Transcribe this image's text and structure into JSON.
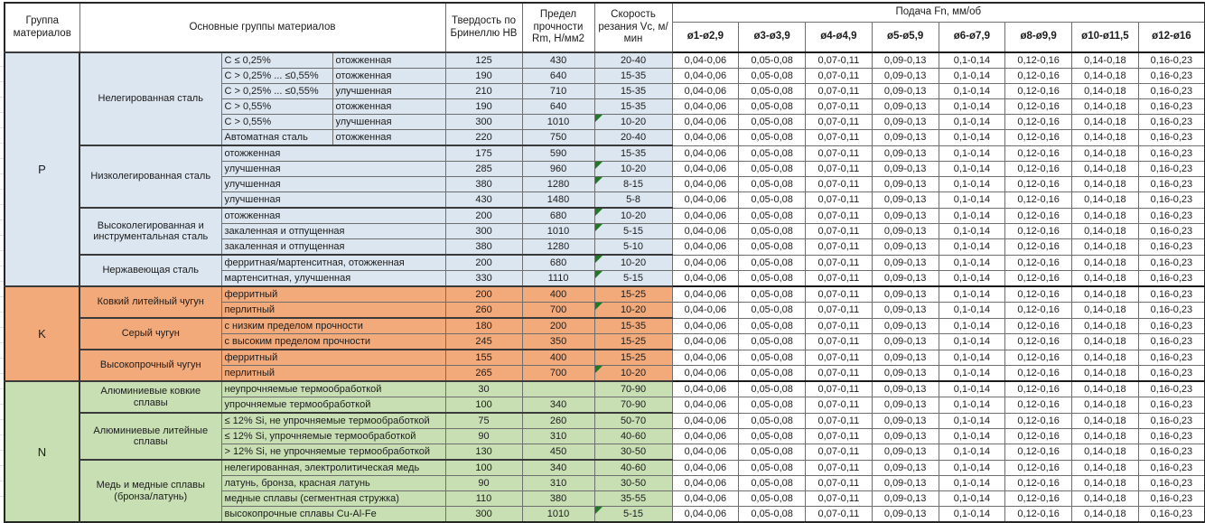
{
  "header": {
    "col_group": "Группа материалов",
    "col_materials": "Основные группы материалов",
    "col_hb": "Твердость по Бринеллю НВ",
    "col_rm": "Предел прочности Rm, Н/мм2",
    "col_vc": "Скорость резания Vc, м/мин",
    "col_feed": "Подача Fn, мм/об",
    "feed_cols": [
      "ø1-ø2,9",
      "ø3-ø3,9",
      "ø4-ø4,9",
      "ø5-ø5,9",
      "ø6-ø7,9",
      "ø8-ø9,9",
      "ø10-ø11,5",
      "ø12-ø16"
    ]
  },
  "colors": {
    "group_p_bg": "#dce6f0",
    "group_k_bg": "#f3aa7b",
    "group_n_bg": "#c8dfb4",
    "note_flag": "#1f7a24",
    "grid_border": "#6e6e6e"
  },
  "feed_values": [
    "0,04-0,06",
    "0,05-0,08",
    "0,07-0,11",
    "0,09-0,13",
    "0,1-0,14",
    "0,12-0,16",
    "0,14-0,18",
    "0,16-0,23"
  ],
  "groups": [
    {
      "letter": "P",
      "families": [
        {
          "name": "Нелегированная сталь",
          "rows": [
            {
              "sub1": "C ≤ 0,25%",
              "sub2": "отожженная",
              "hb": "125",
              "rm": "430",
              "vc": "20-40",
              "flag": false
            },
            {
              "sub1": "C > 0,25% ... ≤0,55%",
              "sub2": "отожженная",
              "hb": "190",
              "rm": "640",
              "vc": "15-35",
              "flag": false
            },
            {
              "sub1": "C > 0,25% ... ≤0,55%",
              "sub2": "улучшенная",
              "hb": "210",
              "rm": "710",
              "vc": "15-35",
              "flag": false
            },
            {
              "sub1": "C > 0,55%",
              "sub2": "отожженная",
              "hb": "190",
              "rm": "640",
              "vc": "15-35",
              "flag": false
            },
            {
              "sub1": "C > 0,55%",
              "sub2": "улучшенная",
              "hb": "300",
              "rm": "1010",
              "vc": "10-20",
              "flag": true
            },
            {
              "sub1": "Автоматная сталь",
              "sub2": "отожженная",
              "hb": "220",
              "rm": "750",
              "vc": "20-40",
              "flag": false
            }
          ]
        },
        {
          "name": "Низколегированная сталь",
          "rows": [
            {
              "sub1": "отожженная",
              "hb": "175",
              "rm": "590",
              "vc": "15-35",
              "flag": false
            },
            {
              "sub1": "улучшенная",
              "hb": "285",
              "rm": "960",
              "vc": "10-20",
              "flag": true
            },
            {
              "sub1": "улучшенная",
              "hb": "380",
              "rm": "1280",
              "vc": "8-15",
              "flag": true
            },
            {
              "sub1": "улучшенная",
              "hb": "430",
              "rm": "1480",
              "vc": "5-8",
              "flag": false
            }
          ]
        },
        {
          "name": "Высоколегированная и инструментальная сталь",
          "rows": [
            {
              "sub1": "отожженная",
              "hb": "200",
              "rm": "680",
              "vc": "10-20",
              "flag": true
            },
            {
              "sub1": "закаленная и отпущенная",
              "hb": "300",
              "rm": "1010",
              "vc": "5-15",
              "flag": true
            },
            {
              "sub1": "закаленная и отпущенная",
              "hb": "380",
              "rm": "1280",
              "vc": "5-10",
              "flag": false
            }
          ]
        },
        {
          "name": "Нержавеющая сталь",
          "rows": [
            {
              "sub1": "ферритная/мартенситная, отожженная",
              "hb": "200",
              "rm": "680",
              "vc": "10-20",
              "flag": true
            },
            {
              "sub1": "мартенситная, улучшенная",
              "hb": "330",
              "rm": "1110",
              "vc": "5-15",
              "flag": true
            }
          ]
        }
      ]
    },
    {
      "letter": "K",
      "families": [
        {
          "name": "Ковкий литейный чугун",
          "rows": [
            {
              "sub1": "ферритный",
              "hb": "200",
              "rm": "400",
              "vc": "15-25",
              "flag": false
            },
            {
              "sub1": "перлитный",
              "hb": "260",
              "rm": "700",
              "vc": "10-20",
              "flag": true
            }
          ]
        },
        {
          "name": "Серый чугун",
          "rows": [
            {
              "sub1": "с низким пределом прочности",
              "hb": "180",
              "rm": "200",
              "vc": "15-35",
              "flag": false
            },
            {
              "sub1": "с высоким пределом прочности",
              "hb": "245",
              "rm": "350",
              "vc": "15-25",
              "flag": false
            }
          ]
        },
        {
          "name": "Высокопрочный чугун",
          "rows": [
            {
              "sub1": "ферритный",
              "hb": "155",
              "rm": "400",
              "vc": "15-25",
              "flag": false
            },
            {
              "sub1": "перлитный",
              "hb": "265",
              "rm": "700",
              "vc": "10-20",
              "flag": true
            }
          ]
        }
      ]
    },
    {
      "letter": "N",
      "families": [
        {
          "name": "Алюминиевые ковкие сплавы",
          "rows": [
            {
              "sub1": "неупрочняемые термообработкой",
              "hb": "30",
              "rm": "",
              "vc": "70-90",
              "flag": false
            },
            {
              "sub1": "упрочняемые термообработкой",
              "hb": "100",
              "rm": "340",
              "vc": "70-90",
              "flag": false
            }
          ]
        },
        {
          "name": "Алюминиевые литейные сплавы",
          "rows": [
            {
              "sub1": "≤ 12% Si, не упрочняемые термообработкой",
              "hb": "75",
              "rm": "260",
              "vc": "50-70",
              "flag": false
            },
            {
              "sub1": "≤ 12% Si, упрочняемые термообработкой",
              "hb": "90",
              "rm": "310",
              "vc": "40-60",
              "flag": false
            },
            {
              "sub1": "> 12% Si, не упрочняемые термообработкой",
              "hb": "130",
              "rm": "450",
              "vc": "30-50",
              "flag": false
            }
          ]
        },
        {
          "name": "Медь и медные сплавы (бронза/латунь)",
          "rows": [
            {
              "sub1": "нелегированная, электролитическая медь",
              "hb": "100",
              "rm": "340",
              "vc": "40-60",
              "flag": false
            },
            {
              "sub1": "латунь, бронза, красная латунь",
              "hb": "90",
              "rm": "310",
              "vc": "30-50",
              "flag": false
            },
            {
              "sub1": "медные сплавы (сегментная стружка)",
              "hb": "110",
              "rm": "380",
              "vc": "35-55",
              "flag": false
            },
            {
              "sub1": "высокопрочные сплавы Cu-Al-Fe",
              "hb": "300",
              "rm": "1010",
              "vc": "5-15",
              "flag": true
            }
          ]
        }
      ]
    }
  ]
}
